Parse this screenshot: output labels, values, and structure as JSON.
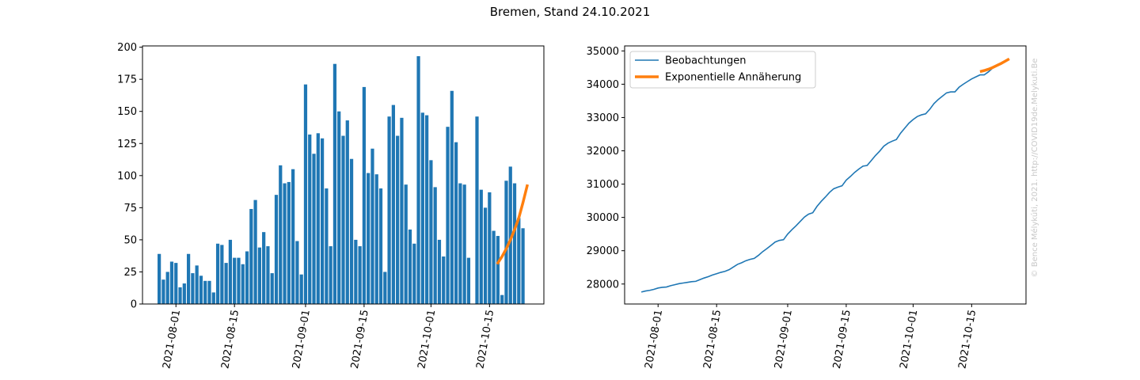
{
  "suptitle": "Bremen, Stand 24.10.2021",
  "watermark": "© Bence Mélykúti, 2021. http://COVID19de.Melykuti.Be",
  "colors": {
    "observed": "#1f77b4",
    "fit": "#ff7f0e",
    "watermark": "#c8c8c8"
  },
  "chart_data": [
    {
      "type": "bar",
      "title": "",
      "xlabel": "",
      "ylabel": "",
      "x_start_date": "2021-07-28",
      "x_ticks": [
        "2021-08-01",
        "2021-08-15",
        "2021-09-01",
        "2021-09-15",
        "2021-10-01",
        "2021-10-15"
      ],
      "y_ticks": [
        0,
        25,
        50,
        75,
        100,
        125,
        150,
        175,
        200
      ],
      "xlim": [
        "2021-07-24",
        "2021-10-28"
      ],
      "ylim": [
        0,
        201
      ],
      "grid": false,
      "values": [
        39,
        19,
        25,
        33,
        32,
        13,
        16,
        39,
        24,
        30,
        22,
        18,
        18,
        9,
        47,
        46,
        32,
        50,
        36,
        36,
        31,
        41,
        74,
        81,
        44,
        56,
        45,
        24,
        85,
        108,
        94,
        95,
        105,
        49,
        23,
        171,
        132,
        117,
        133,
        129,
        90,
        45,
        187,
        150,
        131,
        143,
        113,
        50,
        45,
        169,
        102,
        121,
        101,
        90,
        25,
        146,
        155,
        131,
        145,
        93,
        58,
        47,
        193,
        149,
        147,
        112,
        91,
        50,
        37,
        138,
        166,
        126,
        94,
        93,
        36,
        0,
        146,
        89,
        75,
        87,
        57,
        53,
        7,
        96,
        107,
        94,
        67,
        59
      ],
      "fit": {
        "name": "Exponentielle Annäherung",
        "x": [
          "2021-10-17",
          "2021-10-18",
          "2021-10-19",
          "2021-10-20",
          "2021-10-21",
          "2021-10-22",
          "2021-10-23",
          "2021-10-24"
        ],
        "values": [
          32,
          37,
          43,
          50,
          58,
          67,
          79,
          92
        ]
      }
    },
    {
      "type": "line",
      "title": "",
      "xlabel": "",
      "ylabel": "",
      "x_start_date": "2021-07-28",
      "x_ticks": [
        "2021-08-01",
        "2021-08-15",
        "2021-09-01",
        "2021-09-15",
        "2021-10-01",
        "2021-10-15"
      ],
      "y_ticks": [
        28000,
        29000,
        30000,
        31000,
        32000,
        33000,
        34000,
        35000
      ],
      "xlim": [
        "2021-07-24",
        "2021-10-28"
      ],
      "ylim": [
        27400,
        35150
      ],
      "grid": false,
      "legend_position": "top-left",
      "series": [
        {
          "name": "Beobachtungen",
          "color": "#1f77b4",
          "values": [
            27760,
            27790,
            27810,
            27840,
            27880,
            27900,
            27910,
            27950,
            27980,
            28010,
            28030,
            28050,
            28070,
            28080,
            28130,
            28180,
            28220,
            28270,
            28310,
            28350,
            28380,
            28430,
            28510,
            28590,
            28640,
            28700,
            28740,
            28770,
            28860,
            28970,
            29060,
            29160,
            29260,
            29310,
            29330,
            29500,
            29630,
            29750,
            29880,
            30010,
            30100,
            30140,
            30330,
            30480,
            30610,
            30750,
            30860,
            30910,
            30950,
            31120,
            31230,
            31350,
            31450,
            31540,
            31560,
            31710,
            31860,
            31990,
            32140,
            32230,
            32290,
            32340,
            32530,
            32680,
            32830,
            32940,
            33030,
            33080,
            33110,
            33250,
            33420,
            33540,
            33640,
            33740,
            33770,
            33770,
            33910,
            34000,
            34080,
            34160,
            34220,
            34280,
            34280,
            34370,
            34480,
            34580,
            34640,
            34700
          ]
        },
        {
          "name": "Exponentielle Annäherung",
          "color": "#ff7f0e",
          "x": [
            "2021-10-17",
            "2021-10-18",
            "2021-10-19",
            "2021-10-20",
            "2021-10-21",
            "2021-10-22",
            "2021-10-23",
            "2021-10-24"
          ],
          "values": [
            34380,
            34410,
            34450,
            34500,
            34560,
            34620,
            34690,
            34760
          ]
        }
      ]
    }
  ]
}
